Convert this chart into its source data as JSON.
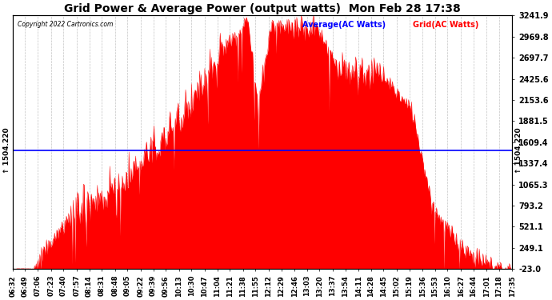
{
  "title": "Grid Power & Average Power (output watts)  Mon Feb 28 17:38",
  "copyright": "Copyright 2022 Cartronics.com",
  "legend_avg": "Average(AC Watts)",
  "legend_grid": "Grid(AC Watts)",
  "avg_value": 1504.22,
  "y_min": -23.0,
  "y_max": 3241.9,
  "yticks_right": [
    3241.9,
    2969.8,
    2697.7,
    2425.6,
    2153.6,
    1881.5,
    1609.4,
    1337.4,
    1065.3,
    793.2,
    521.1,
    249.1,
    -23.0
  ],
  "area_color": "#ff0000",
  "avg_line_color": "#0000ff",
  "background_color": "#ffffff",
  "grid_color": "#888888",
  "title_color": "#000000",
  "avg_label_color": "#0000ff",
  "grid_label_color": "#ff0000",
  "x_label_color": "#000000",
  "x_ticks": [
    "06:32",
    "06:49",
    "07:06",
    "07:23",
    "07:40",
    "07:57",
    "08:14",
    "08:31",
    "08:48",
    "09:05",
    "09:22",
    "09:39",
    "09:56",
    "10:13",
    "10:30",
    "10:47",
    "11:04",
    "11:21",
    "11:38",
    "11:55",
    "12:12",
    "12:29",
    "12:46",
    "13:03",
    "13:20",
    "13:37",
    "13:54",
    "14:11",
    "14:28",
    "14:45",
    "15:02",
    "15:19",
    "15:36",
    "15:53",
    "16:10",
    "16:27",
    "16:44",
    "17:01",
    "17:18",
    "17:35"
  ],
  "n_points": 680
}
